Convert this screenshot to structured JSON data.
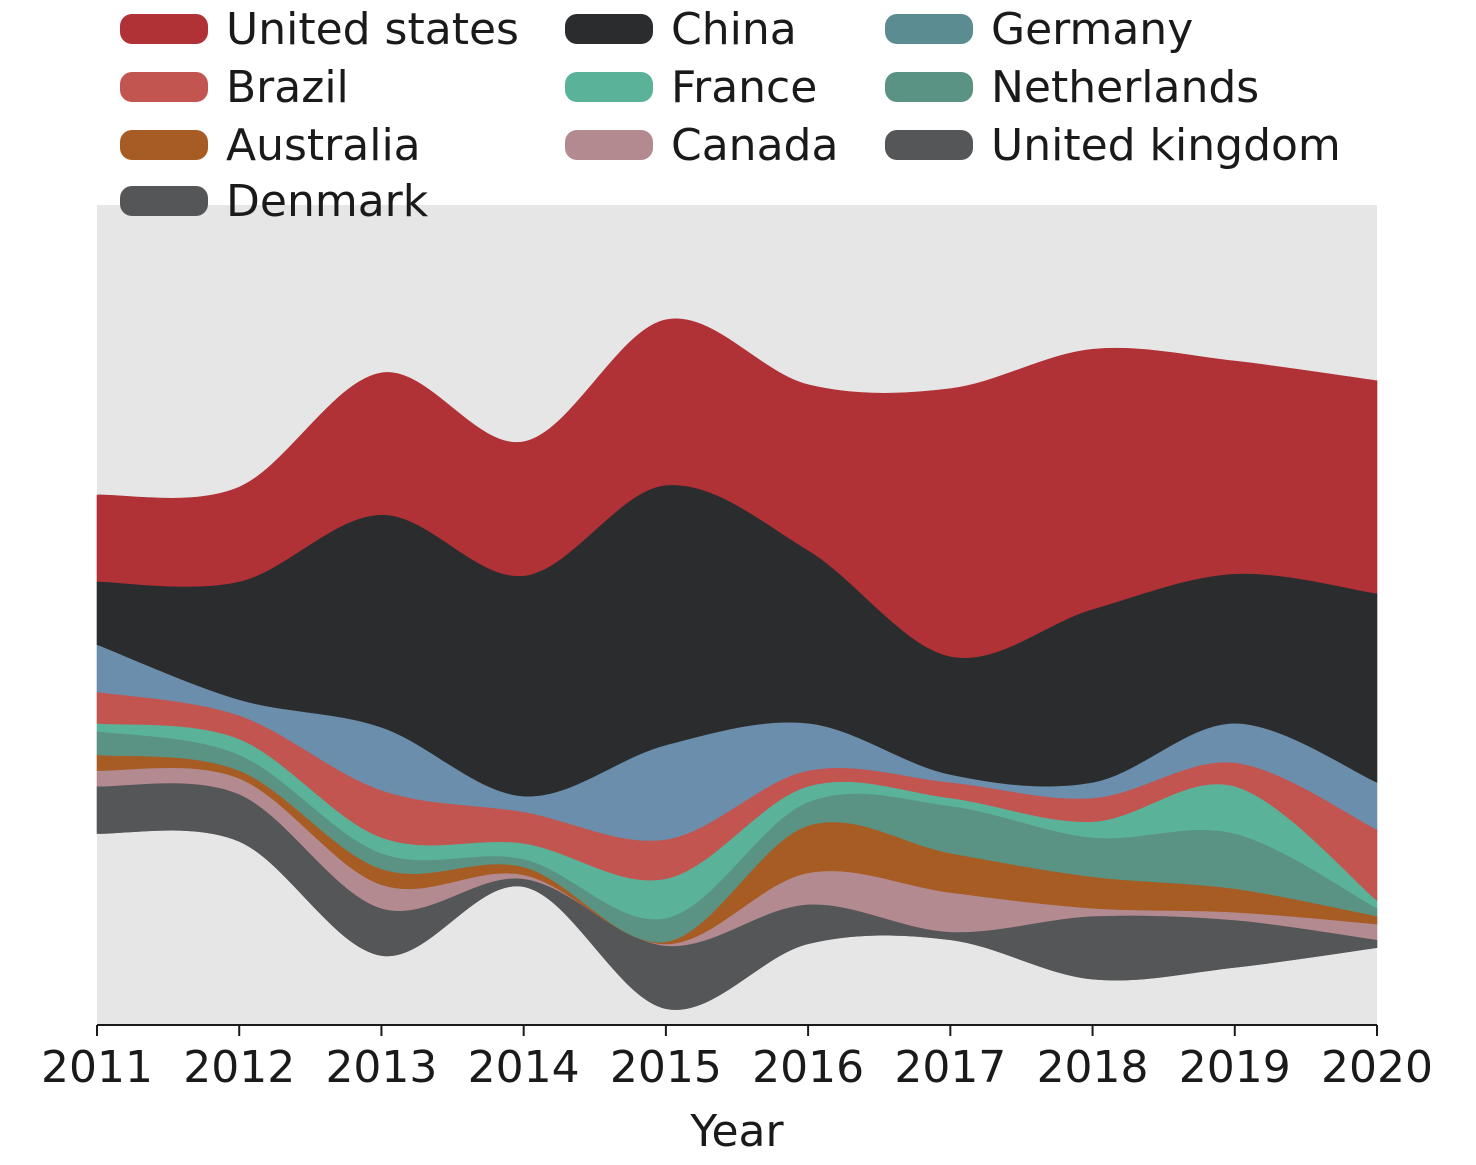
{
  "chart_data": {
    "type": "area",
    "variant": "streamgraph",
    "title": "",
    "xlabel": "Year",
    "ylabel": "",
    "x": [
      2011,
      2012,
      2013,
      2014,
      2015,
      2016,
      2017,
      2018,
      2019,
      2020
    ],
    "xlim": [
      2011,
      2020
    ],
    "y_axis_visible": false,
    "grid": false,
    "legend": {
      "placement": "top",
      "columns": 3
    },
    "units": "relative",
    "series": [
      {
        "name": "United states",
        "color": "#b03136",
        "values": [
          11,
          12,
          18,
          17,
          21,
          21,
          34,
          33,
          27,
          27
        ]
      },
      {
        "name": "China",
        "color": "#2b2c2d",
        "values": [
          8,
          15,
          27,
          28,
          33,
          22,
          15,
          22,
          19,
          24
        ]
      },
      {
        "name": "Germany",
        "color": "#6a8eab",
        "values": [
          6,
          2,
          8,
          2,
          12,
          6,
          1,
          2,
          5,
          6
        ]
      },
      {
        "name": "Brazil",
        "color": "#c25550",
        "values": [
          4,
          3,
          6,
          4,
          5,
          2,
          2,
          3,
          3,
          9
        ]
      },
      {
        "name": "France",
        "color": "#5ab299",
        "values": [
          1,
          2,
          2,
          2,
          5,
          2,
          1,
          2,
          6,
          1
        ]
      },
      {
        "name": "Netherlands",
        "color": "#5a9383",
        "values": [
          3,
          2,
          2,
          1,
          3,
          3,
          6,
          5,
          7,
          1
        ]
      },
      {
        "name": "Australia",
        "color": "#a65c23",
        "values": [
          2,
          1,
          2,
          1,
          0.3,
          6,
          5,
          4,
          3,
          1
        ]
      },
      {
        "name": "Canada",
        "color": "#b28a90",
        "values": [
          2,
          2,
          3,
          0.5,
          0.2,
          4,
          5,
          1,
          1,
          2
        ]
      },
      {
        "name": "Denmark",
        "color": "#555658",
        "values": [
          6,
          6,
          6,
          1,
          8,
          5,
          1,
          8,
          6,
          1
        ]
      },
      {
        "name": "United kingdom",
        "color": "#555658",
        "values": [
          0,
          0,
          0,
          0,
          0,
          0,
          0,
          0,
          0,
          0
        ]
      }
    ],
    "legend_items": [
      {
        "label": "United states",
        "color": "#b03136"
      },
      {
        "label": "Brazil",
        "color": "#c25550"
      },
      {
        "label": "Australia",
        "color": "#a65c23"
      },
      {
        "label": "Denmark",
        "color": "#555658"
      },
      {
        "label": "China",
        "color": "#2b2c2d"
      },
      {
        "label": "France",
        "color": "#5ab299"
      },
      {
        "label": "Canada",
        "color": "#b28a90"
      },
      {
        "label": "Germany",
        "color": "#5b8c92"
      },
      {
        "label": "Netherlands",
        "color": "#5a9383"
      },
      {
        "label": "United kingdom",
        "color": "#555658"
      }
    ],
    "colors": {
      "plot_background": "#e6e6e6",
      "axis": "#1a1a1a"
    }
  }
}
